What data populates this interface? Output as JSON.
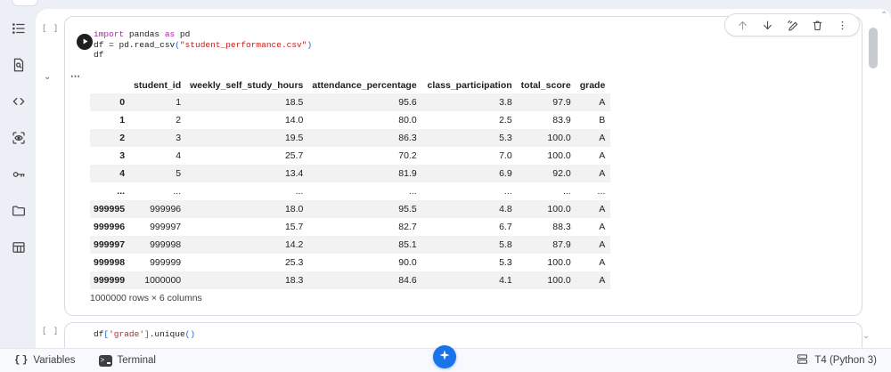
{
  "colors": {
    "accent_blue": "#1a73e8",
    "code_keyword": "#a626a4",
    "code_string": "#c5221f",
    "code_bracket": "#1967d2",
    "table_stripe": "#f2f2f2"
  },
  "sidebar": {
    "icons": [
      "table-of-contents-icon",
      "find-replace-icon",
      "code-snippets-icon",
      "variable-inspector-icon",
      "secrets-key-icon",
      "files-folder-icon",
      "data-table-icon"
    ]
  },
  "cell_toolbar": {
    "icons": [
      "move-cell-up-icon",
      "move-cell-down-icon",
      "magic-edit-icon",
      "delete-cell-icon",
      "more-vert-icon"
    ]
  },
  "cell1": {
    "gutter": "[ ]",
    "output_options": "⋯",
    "code_lines": [
      [
        {
          "t": "import",
          "c": "kw"
        },
        {
          "t": " pandas ",
          "c": "pl"
        },
        {
          "t": "as",
          "c": "kw"
        },
        {
          "t": " pd",
          "c": "pl"
        }
      ],
      [
        {
          "t": "df = pd.read_csv",
          "c": "pl"
        },
        {
          "t": "(",
          "c": "br"
        },
        {
          "t": "\"student_performance.csv\"",
          "c": "str"
        },
        {
          "t": ")",
          "c": "br"
        }
      ],
      [
        {
          "t": "df",
          "c": "pl"
        }
      ]
    ]
  },
  "table": {
    "columns": [
      "student_id",
      "weekly_self_study_hours",
      "attendance_percentage",
      "class_participation",
      "total_score",
      "grade"
    ],
    "rows": [
      [
        "0",
        "1",
        "18.5",
        "95.6",
        "3.8",
        "97.9",
        "A"
      ],
      [
        "1",
        "2",
        "14.0",
        "80.0",
        "2.5",
        "83.9",
        "B"
      ],
      [
        "2",
        "3",
        "19.5",
        "86.3",
        "5.3",
        "100.0",
        "A"
      ],
      [
        "3",
        "4",
        "25.7",
        "70.2",
        "7.0",
        "100.0",
        "A"
      ],
      [
        "4",
        "5",
        "13.4",
        "81.9",
        "6.9",
        "92.0",
        "A"
      ],
      [
        "...",
        "...",
        "...",
        "...",
        "...",
        "...",
        "..."
      ],
      [
        "999995",
        "999996",
        "18.0",
        "95.5",
        "4.8",
        "100.0",
        "A"
      ],
      [
        "999996",
        "999997",
        "15.7",
        "82.7",
        "6.7",
        "88.3",
        "A"
      ],
      [
        "999997",
        "999998",
        "14.2",
        "85.1",
        "5.8",
        "87.9",
        "A"
      ],
      [
        "999998",
        "999999",
        "25.3",
        "90.0",
        "5.3",
        "100.0",
        "A"
      ],
      [
        "999999",
        "1000000",
        "18.3",
        "84.6",
        "4.1",
        "100.0",
        "A"
      ]
    ],
    "footer": "1000000 rows × 6 columns"
  },
  "cell2": {
    "gutter": "[ ]",
    "code_lines": [
      [
        {
          "t": "df",
          "c": "pl"
        },
        {
          "t": "[",
          "c": "br"
        },
        {
          "t": "'grade'",
          "c": "str"
        },
        {
          "t": "]",
          "c": "br"
        },
        {
          "t": ".unique",
          "c": "pl"
        },
        {
          "t": "(",
          "c": "br"
        },
        {
          "t": ")",
          "c": "br"
        }
      ]
    ]
  },
  "statusbar": {
    "variables_label": "Variables",
    "terminal_label": "Terminal",
    "runtime_label": "T4 (Python 3)"
  }
}
